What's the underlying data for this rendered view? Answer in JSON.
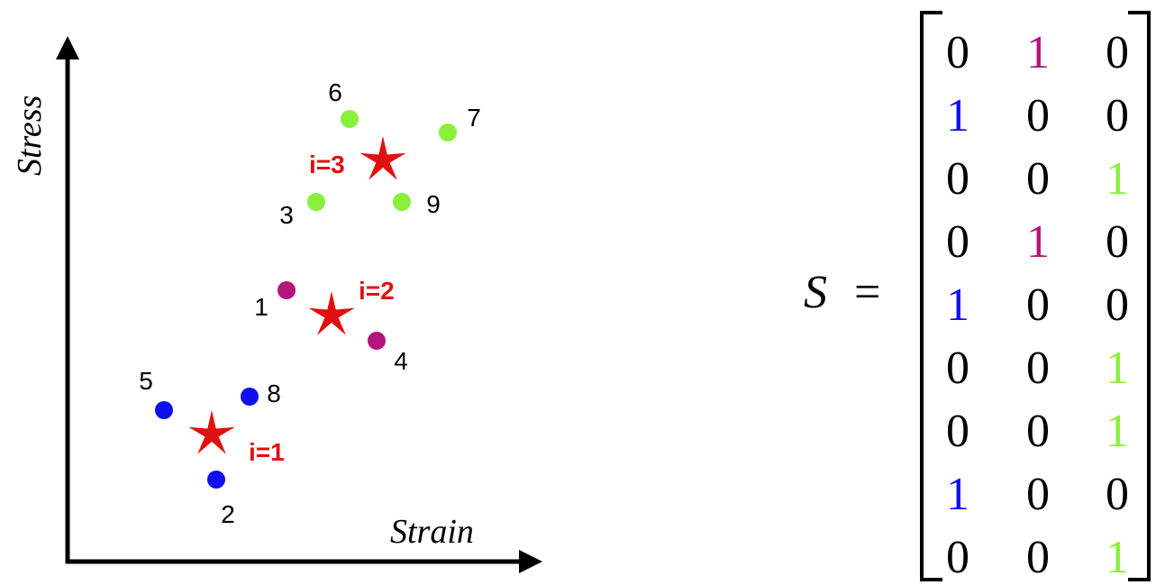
{
  "plot": {
    "x_axis_label": "Strain",
    "y_axis_label": "Stress"
  },
  "colors": {
    "cluster_1": "#1010ee",
    "cluster_2": "#b5157a",
    "cluster_3": "#88f03c",
    "centroid": "#e01010",
    "axis": "#000000",
    "text": "#000000"
  },
  "points": [
    {
      "id": "1",
      "cluster": 2
    },
    {
      "id": "2",
      "cluster": 1
    },
    {
      "id": "3",
      "cluster": 3
    },
    {
      "id": "4",
      "cluster": 2
    },
    {
      "id": "5",
      "cluster": 1
    },
    {
      "id": "6",
      "cluster": 3
    },
    {
      "id": "7",
      "cluster": 3
    },
    {
      "id": "8",
      "cluster": 1
    },
    {
      "id": "9",
      "cluster": 3
    }
  ],
  "centroids": [
    {
      "label": "i=1",
      "cluster": 1
    },
    {
      "label": "i=2",
      "cluster": 2
    },
    {
      "label": "i=3",
      "cluster": 3
    }
  ],
  "matrix": {
    "symbol": "S",
    "equals": "=",
    "rows": [
      [
        "0",
        "1",
        "0"
      ],
      [
        "1",
        "0",
        "0"
      ],
      [
        "0",
        "0",
        "1"
      ],
      [
        "0",
        "1",
        "0"
      ],
      [
        "1",
        "0",
        "0"
      ],
      [
        "0",
        "0",
        "1"
      ],
      [
        "0",
        "0",
        "1"
      ],
      [
        "1",
        "0",
        "0"
      ],
      [
        "0",
        "0",
        "1"
      ]
    ]
  }
}
